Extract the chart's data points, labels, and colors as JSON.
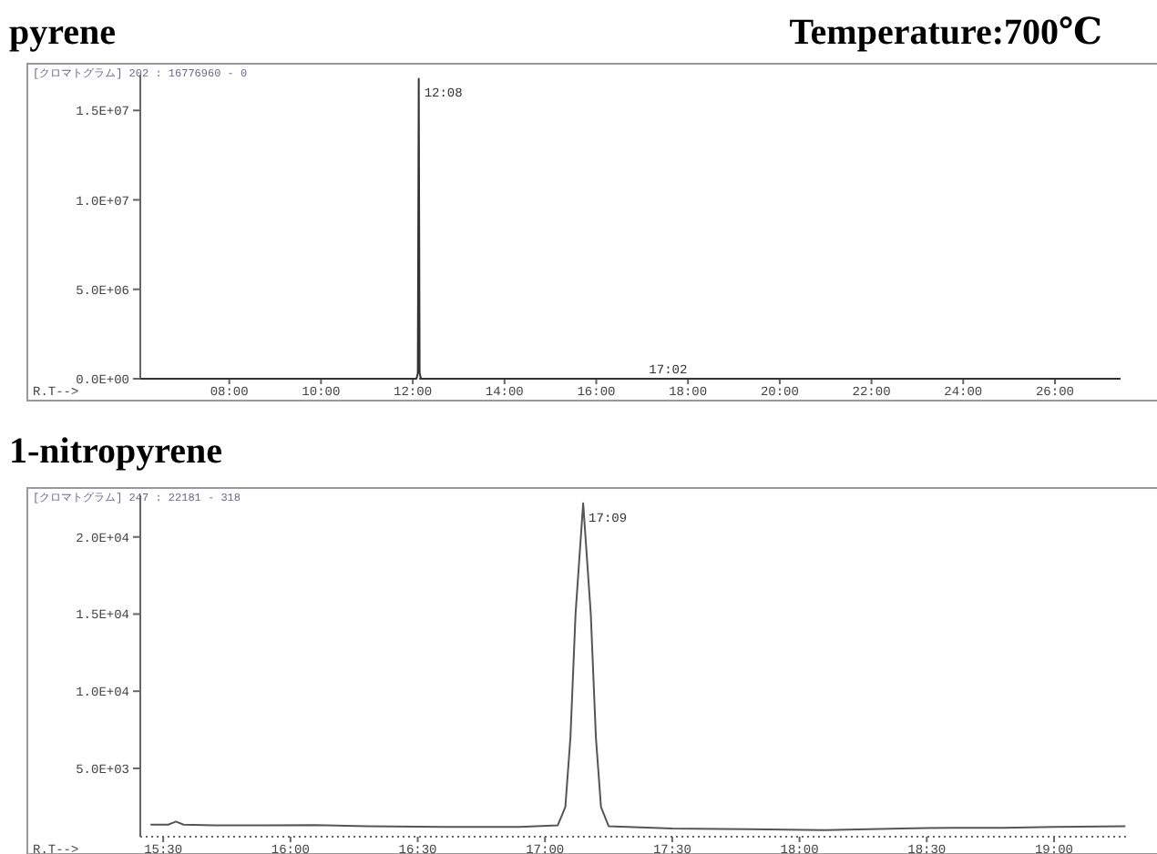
{
  "chart_data": [
    {
      "type": "line",
      "title": "pyrene",
      "subtitle": "[クロマトグラム]  202 : 16776960 - 0",
      "xlabel": "R.T-->",
      "annotations": [
        "Temperature:700℃",
        {
          "text": "12:08",
          "x": 12.13,
          "y": 16776960
        },
        {
          "text": "17:02",
          "x": 17.03,
          "y": 0
        }
      ],
      "xlim": [
        6.06,
        27.43
      ],
      "ylim": [
        0,
        17000000
      ],
      "xticks": [
        {
          "value": 8,
          "label": "08:00"
        },
        {
          "value": 10,
          "label": "10:00"
        },
        {
          "value": 12,
          "label": "12:00"
        },
        {
          "value": 14,
          "label": "14:00"
        },
        {
          "value": 16,
          "label": "16:00"
        },
        {
          "value": 18,
          "label": "18:00"
        },
        {
          "value": 20,
          "label": "20:00"
        },
        {
          "value": 22,
          "label": "22:00"
        },
        {
          "value": 24,
          "label": "24:00"
        },
        {
          "value": 26,
          "label": "26:00"
        }
      ],
      "yticks": [
        {
          "value": 0,
          "label": "0.0E+00"
        },
        {
          "value": 5000000,
          "label": "5.0E+06"
        },
        {
          "value": 10000000,
          "label": "1.0E+07"
        },
        {
          "value": 15000000,
          "label": "1.5E+07"
        }
      ],
      "series": [
        {
          "color": "#333333",
          "x": [
            6.06,
            11.5,
            12.08,
            12.11,
            12.13,
            12.15,
            12.18,
            13,
            27.43
          ],
          "values": [
            0,
            0,
            0,
            300000,
            16776960,
            300000,
            0,
            0,
            0
          ]
        }
      ]
    },
    {
      "type": "line",
      "title": "1-nitropyrene",
      "subtitle": "[クロマトグラム]  247 : 22181 - 318",
      "xlabel": "R.T-->",
      "annotations": [
        {
          "text": "17:09",
          "x": 17.15,
          "y": 22181
        }
      ],
      "xlim": [
        15.41,
        19.29
      ],
      "ylim": [
        570,
        22700
      ],
      "xticks": [
        {
          "value": 15.5,
          "label": "15:30"
        },
        {
          "value": 16,
          "label": "16:00"
        },
        {
          "value": 16.5,
          "label": "16:30"
        },
        {
          "value": 17,
          "label": "17:00"
        },
        {
          "value": 17.5,
          "label": "17:30"
        },
        {
          "value": 18,
          "label": "18:00"
        },
        {
          "value": 18.5,
          "label": "18:30"
        },
        {
          "value": 19,
          "label": "19:00"
        }
      ],
      "yticks": [
        {
          "value": 5000,
          "label": "5.0E+03"
        },
        {
          "value": 10000,
          "label": "1.0E+04"
        },
        {
          "value": 15000,
          "label": "1.5E+04"
        },
        {
          "value": 20000,
          "label": "2.0E+04"
        }
      ],
      "series": [
        {
          "color": "#555555",
          "x": [
            15.45,
            15.52,
            15.55,
            15.58,
            15.7,
            15.9,
            16.1,
            16.3,
            16.6,
            16.9,
            17.05,
            17.08,
            17.1,
            17.12,
            17.15,
            17.18,
            17.2,
            17.22,
            17.25,
            17.5,
            17.8,
            18.1,
            18.4,
            18.6,
            18.8,
            19.0,
            19.28
          ],
          "values": [
            1350,
            1350,
            1550,
            1350,
            1300,
            1300,
            1320,
            1250,
            1200,
            1200,
            1300,
            2500,
            7000,
            15000,
            22181,
            15000,
            7000,
            2500,
            1250,
            1100,
            1050,
            1000,
            1100,
            1150,
            1150,
            1200,
            1250
          ]
        }
      ]
    }
  ]
}
